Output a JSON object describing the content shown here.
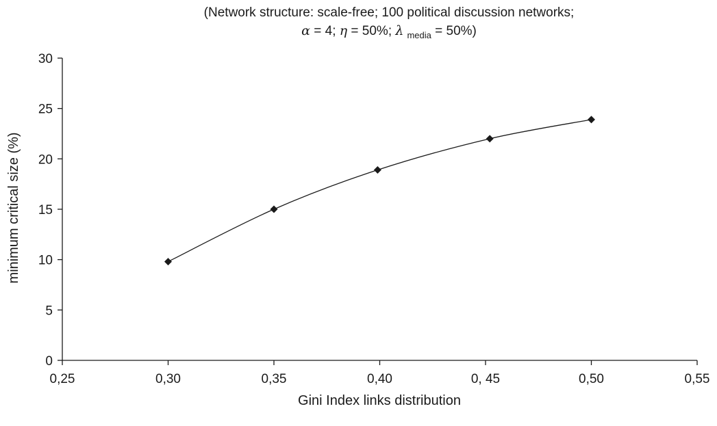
{
  "chart_data": {
    "type": "line",
    "title_line1": "(Network structure: scale-free; 100 political discussion networks;",
    "title_line2": {
      "alpha_symbol": "α",
      "alpha_value": " = 4; ",
      "eta_symbol": "η",
      "eta_value": " = 50%; ",
      "lambda_symbol": "λ",
      "lambda_subscript": "media",
      "lambda_value": " = 50%)"
    },
    "xlabel": "Gini Index links distribution",
    "ylabel": "minimum critical size (%)",
    "xlim": [
      0.25,
      0.55
    ],
    "ylim": [
      0,
      30
    ],
    "x_ticks": [
      {
        "value": 0.25,
        "label": "0,25"
      },
      {
        "value": 0.3,
        "label": "0,30"
      },
      {
        "value": 0.35,
        "label": "0,35"
      },
      {
        "value": 0.4,
        "label": "0,40"
      },
      {
        "value": 0.45,
        "label": "0, 45"
      },
      {
        "value": 0.5,
        "label": "0,50"
      },
      {
        "value": 0.55,
        "label": "0,55"
      }
    ],
    "y_ticks": [
      {
        "value": 0,
        "label": "0"
      },
      {
        "value": 5,
        "label": "5"
      },
      {
        "value": 10,
        "label": "10"
      },
      {
        "value": 15,
        "label": "15"
      },
      {
        "value": 20,
        "label": "20"
      },
      {
        "value": 25,
        "label": "25"
      },
      {
        "value": 30,
        "label": "30"
      }
    ],
    "grid": false,
    "legend": "none",
    "marker": "diamond",
    "series": [
      {
        "x": [
          0.3,
          0.35,
          0.399,
          0.452,
          0.5
        ],
        "y": [
          9.8,
          15.0,
          18.9,
          22.0,
          23.9
        ]
      }
    ]
  }
}
